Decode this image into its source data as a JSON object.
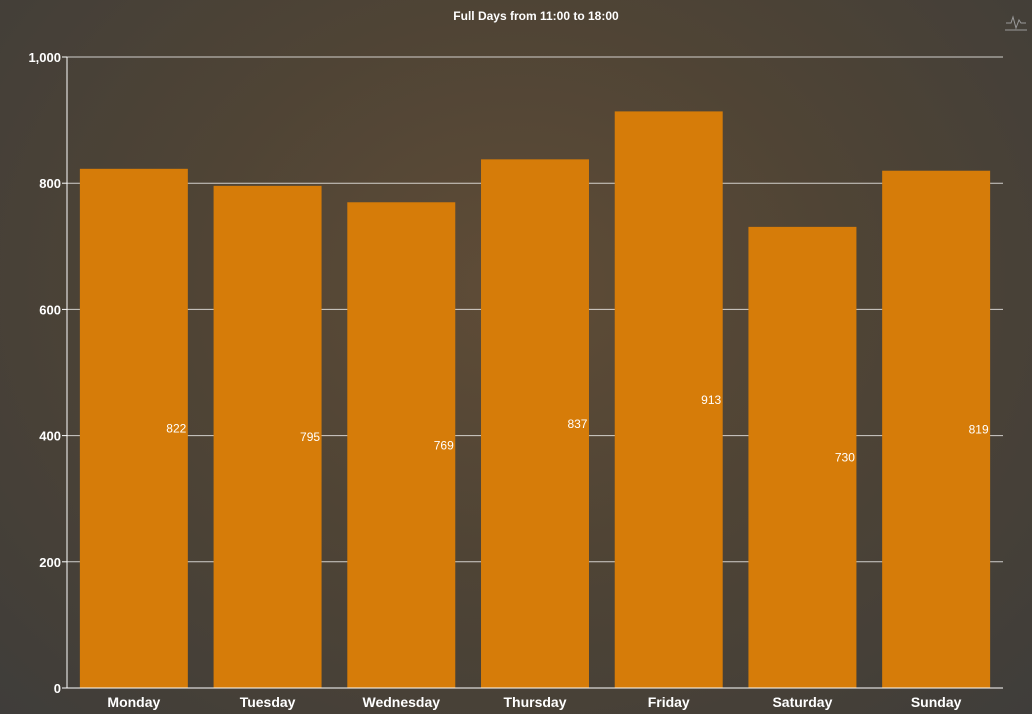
{
  "chart_data": {
    "type": "bar",
    "title": "Full Days from 11:00 to 18:00",
    "xlabel": "",
    "ylabel": "",
    "categories": [
      "Monday",
      "Tuesday",
      "Wednesday",
      "Thursday",
      "Friday",
      "Saturday",
      "Sunday"
    ],
    "values": [
      822,
      795,
      769,
      837,
      913,
      730,
      819
    ],
    "ylim": [
      0,
      1000
    ],
    "yticks": [
      0,
      200,
      400,
      600,
      800,
      1000
    ],
    "ytick_labels": [
      "0",
      "200",
      "400",
      "600",
      "800",
      "1,000"
    ],
    "grid": true,
    "legend": "none",
    "bar_color": "#d67c09",
    "background": "#4d4338"
  },
  "toolbar": {
    "icon": "activity-icon"
  }
}
